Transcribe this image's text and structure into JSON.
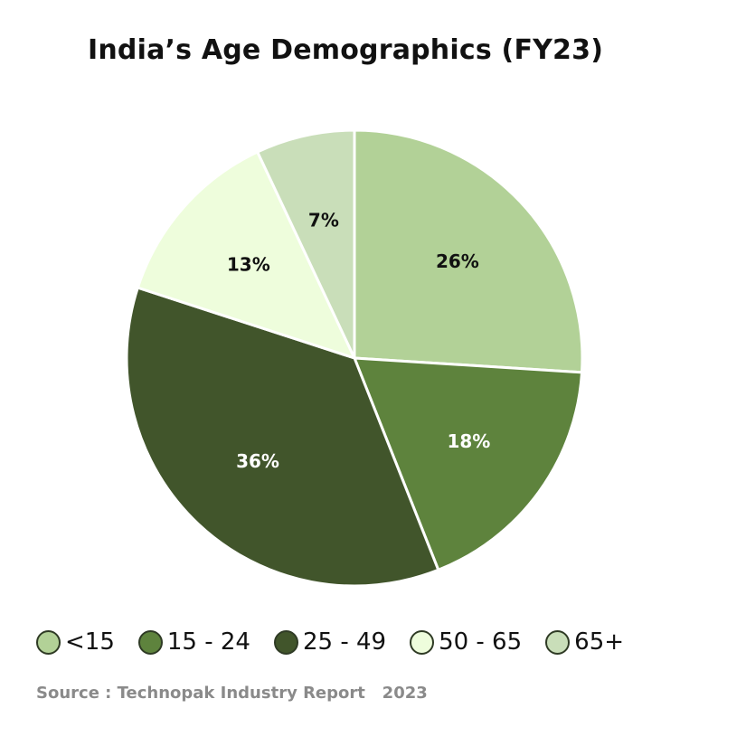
{
  "chart_data": {
    "type": "pie",
    "title": "India’s Age Demographics (FY23)",
    "categories": [
      "<15",
      "15 - 24",
      "25 - 49",
      "50 - 65",
      "65+"
    ],
    "values": [
      26,
      18,
      36,
      13,
      7
    ],
    "value_labels": [
      "26%",
      "18%",
      "36%",
      "13%",
      "7%"
    ],
    "colors": [
      "#b2d197",
      "#5e833d",
      "#41552b",
      "#eefddc",
      "#c9deb9"
    ],
    "label_colors": [
      "#111111",
      "#ffffff",
      "#ffffff",
      "#111111",
      "#111111"
    ],
    "legend_placement": "bottom",
    "start_angle_deg": 0,
    "direction": "clockwise-from-top"
  },
  "source": "Source : Technopak Industry Report   2023"
}
